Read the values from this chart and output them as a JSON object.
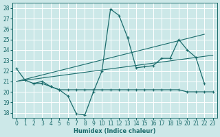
{
  "title": "",
  "xlabel": "Humidex (Indice chaleur)",
  "xlim": [
    -0.5,
    23.5
  ],
  "ylim": [
    17.5,
    28.5
  ],
  "xticks": [
    0,
    1,
    2,
    3,
    4,
    5,
    6,
    7,
    8,
    9,
    10,
    11,
    12,
    13,
    14,
    15,
    16,
    17,
    18,
    19,
    20,
    21,
    22,
    23
  ],
  "yticks": [
    18,
    19,
    20,
    21,
    22,
    23,
    24,
    25,
    26,
    27,
    28
  ],
  "bg_color": "#cce8e8",
  "line_color": "#1a6b6b",
  "grid_color": "#ffffff",
  "series": [
    {
      "x": [
        0,
        1,
        2,
        3,
        4,
        5,
        6,
        7,
        8,
        9,
        10,
        11,
        12,
        13
      ],
      "y": [
        22.2,
        21.1,
        20.8,
        21.0,
        20.5,
        20.2,
        19.6,
        17.9,
        17.8,
        20.0,
        22.0,
        27.9,
        27.3,
        25.2
      ]
    },
    {
      "x": [
        13,
        14,
        15,
        16,
        17,
        18,
        19,
        20,
        21,
        22
      ],
      "y": [
        25.2,
        22.3,
        22.4,
        22.5,
        23.2,
        23.2,
        25.0,
        24.0,
        23.3,
        20.8
      ]
    },
    {
      "x": [
        2,
        3,
        4,
        5,
        6,
        7,
        8,
        9,
        10,
        11,
        12,
        13,
        14,
        15,
        16,
        17,
        18,
        19,
        20,
        21,
        22,
        23
      ],
      "y": [
        20.8,
        20.8,
        20.5,
        20.2,
        20.2,
        20.2,
        20.2,
        20.2,
        20.2,
        20.2,
        20.2,
        20.2,
        20.2,
        20.2,
        20.2,
        20.2,
        20.2,
        20.2,
        20.0,
        20.0,
        20.0,
        20.0
      ]
    },
    {
      "x": [
        0,
        23
      ],
      "y": [
        21.0,
        23.5
      ],
      "no_marker": true
    },
    {
      "x": [
        0,
        22
      ],
      "y": [
        21.0,
        25.5
      ],
      "no_marker": true
    }
  ]
}
